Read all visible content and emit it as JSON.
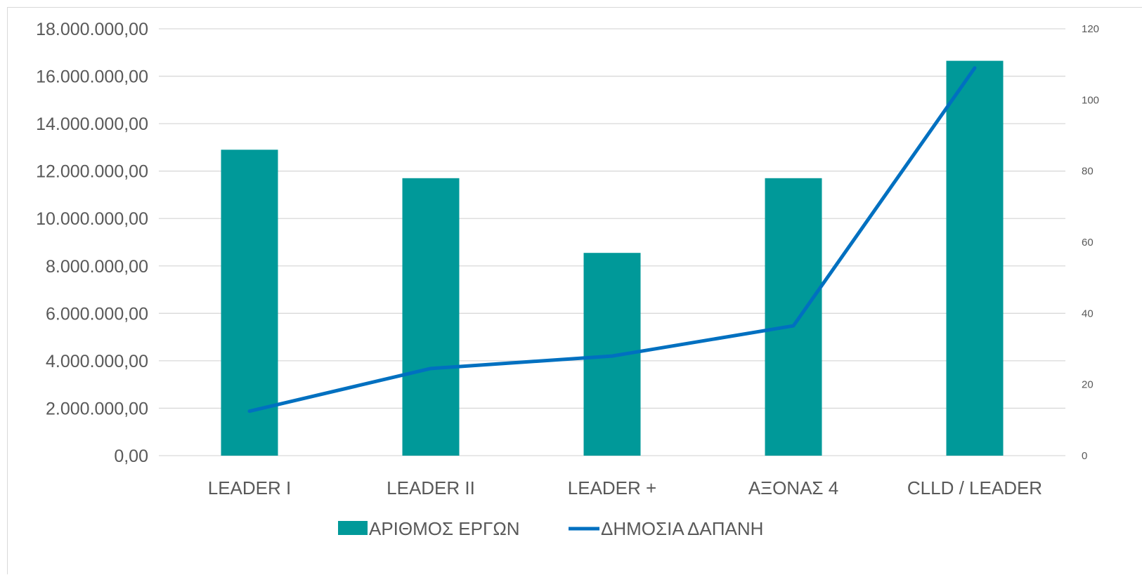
{
  "chart_data": {
    "type": "bar",
    "categories": [
      "LEADER I",
      "LEADER II",
      "LEADER +",
      "ΑΞΟΝΑΣ 4",
      "CLLD / LEADER"
    ],
    "series": [
      {
        "name": "ΑΡΙΘΜΟΣ ΕΡΓΩΝ",
        "type": "bar",
        "axis": "left",
        "color": "#009999",
        "values": [
          12900000,
          11700000,
          8550000,
          11700000,
          16650000
        ]
      },
      {
        "name": "ΔΗΜΟΣΙΑ ΔΑΠΑΝΗ",
        "type": "line",
        "axis": "right",
        "color": "#0070C0",
        "values": [
          12.5,
          24.5,
          28,
          36.5,
          109
        ]
      }
    ],
    "left_axis": {
      "min": 0,
      "max": 18000000,
      "tick_labels": [
        "0,00",
        "2.000.000,00",
        "4.000.000,00",
        "6.000.000,00",
        "8.000.000,00",
        "10.000.000,00",
        "12.000.000,00",
        "14.000.000,00",
        "16.000.000,00",
        "18.000.000,00"
      ]
    },
    "right_axis": {
      "min": 0,
      "max": 120,
      "tick_labels": [
        "0",
        "20",
        "40",
        "60",
        "80",
        "100",
        "120"
      ]
    },
    "grid": true,
    "legend_position": "bottom",
    "title": "",
    "xlabel": "",
    "ylabel": ""
  }
}
